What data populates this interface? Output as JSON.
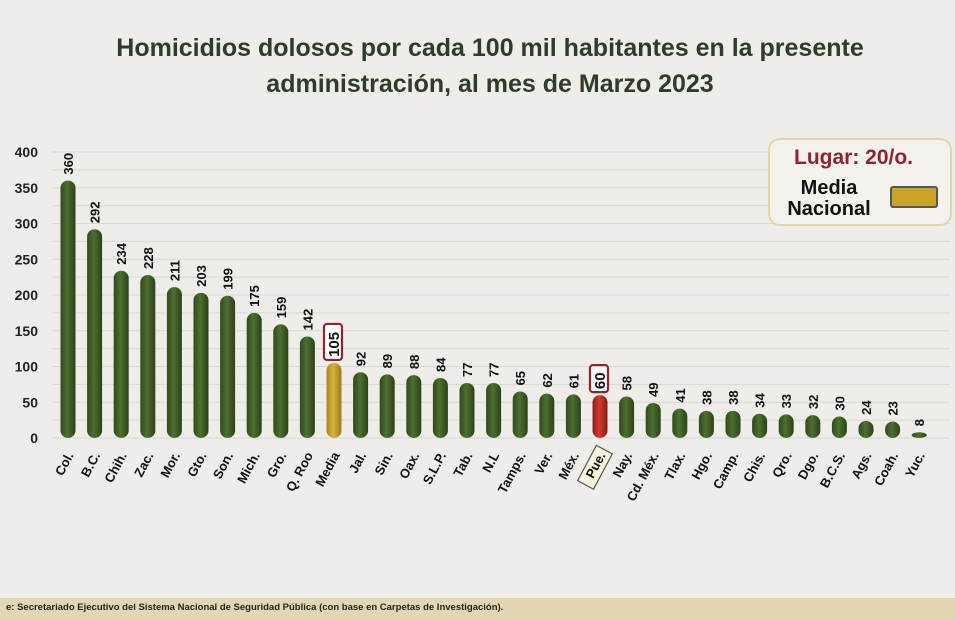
{
  "chart_data": {
    "type": "bar",
    "title": "Homicidios dolosos por cada 100 mil habitantes en la presente administración, al mes de Marzo 2023",
    "categories": [
      "Col.",
      "B.C.",
      "Chih.",
      "Zac.",
      "Mor.",
      "Gto.",
      "Son.",
      "Mich.",
      "Gro.",
      "Q. Roo",
      "Media",
      "Jal.",
      "Sin.",
      "Oax.",
      "S.L.P.",
      "Tab.",
      "N.L",
      "Tamps.",
      "Ver.",
      "Méx.",
      "Pue.",
      "Nay.",
      "Cd. Méx.",
      "Tlax.",
      "Hgo.",
      "Camp.",
      "Chis.",
      "Qro.",
      "Dgo.",
      "B.C.S.",
      "Ags.",
      "Coah.",
      "Yuc."
    ],
    "values": [
      360,
      292,
      234,
      228,
      211,
      203,
      199,
      175,
      159,
      142,
      105,
      92,
      89,
      88,
      84,
      77,
      77,
      65,
      62,
      61,
      60,
      58,
      49,
      41,
      38,
      38,
      34,
      33,
      32,
      30,
      24,
      23,
      8
    ],
    "y_ticks": [
      0,
      50,
      100,
      150,
      200,
      250,
      300,
      350,
      400
    ],
    "ylim": [
      0,
      400
    ],
    "xlabel": "",
    "ylabel": "",
    "highlighted": {
      "Media": "media",
      "Pue.": "state"
    },
    "colors": {
      "default": "#3f5f26",
      "media": "#c9a227",
      "state": "#b52b23",
      "highlight_border": "#8e2432"
    }
  },
  "legend": {
    "lugar": "Lugar: 20/o.",
    "media_label": "Media\nNacional"
  },
  "source": "e:  Secretariado Ejecutivo del Sistema Nacional de Seguridad Pública (con base en Carpetas de Investigación)."
}
